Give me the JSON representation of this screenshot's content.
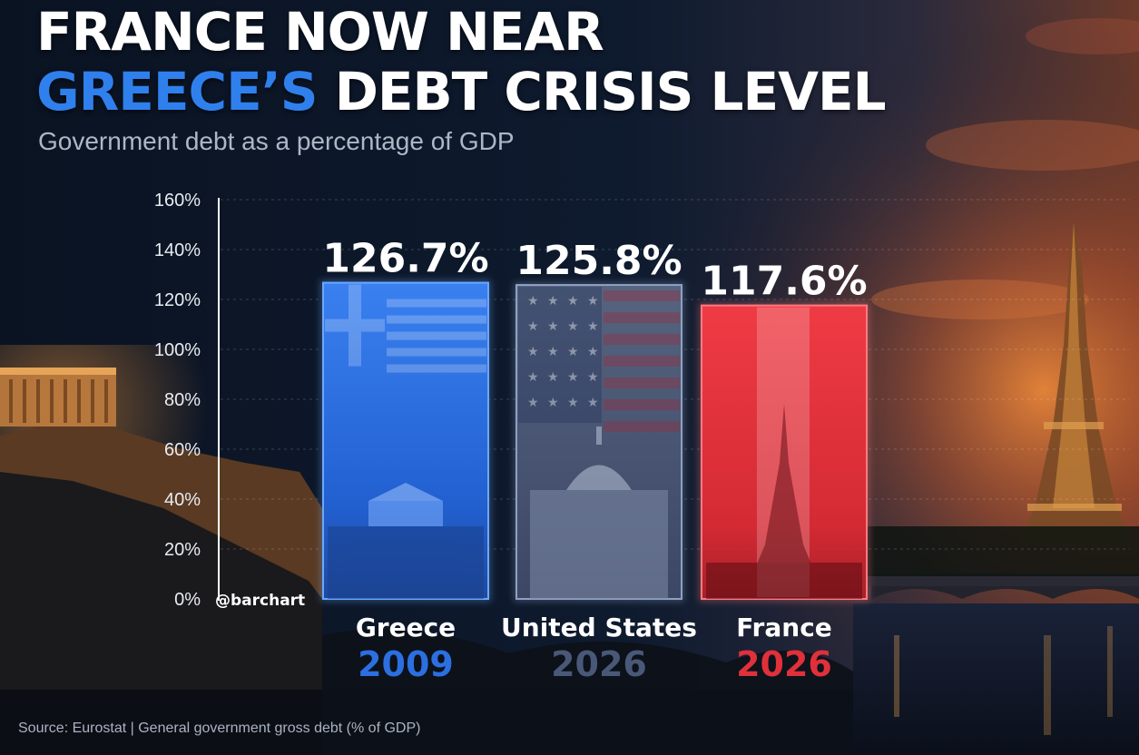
{
  "title_line1": "FRANCE NOW NEAR",
  "title_line2_highlight": "GREECE’S",
  "title_line2_rest": " DEBT CRISIS LEVEL",
  "subtitle": "Government debt as a percentage of GDP",
  "watermark": "@barchart",
  "source": "Source: Eurostat  |  General government gross debt (% of GDP)",
  "colors": {
    "greece": "#2c6fe0",
    "united_states": "#3e4f78",
    "france": "#e0303a",
    "highlight": "#2f80ed"
  },
  "chart_data": {
    "type": "bar",
    "categories": [
      "Greece",
      "United States",
      "France"
    ],
    "years": [
      "2009",
      "2026",
      "2026"
    ],
    "values": [
      126.7,
      125.8,
      117.6
    ],
    "value_labels": [
      "126.7%",
      "125.8%",
      "117.6%"
    ],
    "title": "FRANCE NOW NEAR GREECE’S DEBT CRISIS LEVEL",
    "subtitle": "Government debt as a percentage of GDP",
    "xlabel": "",
    "ylabel": "",
    "ylim": [
      0,
      160
    ],
    "yticks": [
      0,
      20,
      40,
      60,
      80,
      100,
      120,
      140,
      160
    ],
    "ytick_labels": [
      "0%",
      "20%",
      "40%",
      "60%",
      "80%",
      "100%",
      "120%",
      "140%",
      "160%"
    ],
    "grid": true,
    "legend": "none"
  }
}
